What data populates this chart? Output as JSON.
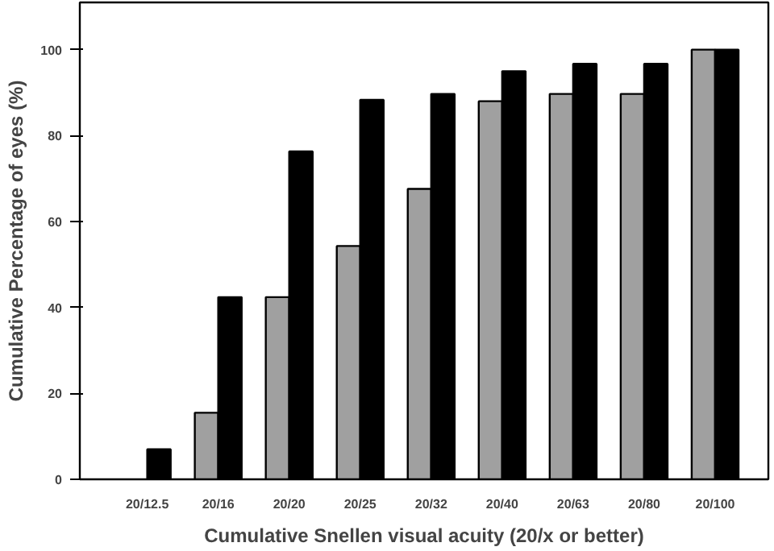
{
  "chart_data": {
    "type": "bar",
    "xlabel": "Cumulative Snellen visual acuity (20/x or better)",
    "ylabel": "Cumulative Percentage of eyes (%)",
    "categories": [
      "20/12.5",
      "20/16",
      "20/20",
      "20/25",
      "20/32",
      "20/40",
      "20/63",
      "20/80",
      "20/100"
    ],
    "series": [
      {
        "color": "#a0a0a0",
        "values": [
          null,
          15.5,
          42.4,
          54.3,
          67.6,
          88.0,
          89.7,
          89.7,
          100
        ]
      },
      {
        "color": "#000000",
        "values": [
          7.0,
          42.4,
          76.3,
          88.3,
          89.7,
          95.0,
          96.7,
          96.7,
          100
        ]
      }
    ],
    "ylim": [
      0,
      111
    ],
    "yticks": [
      0,
      20,
      40,
      60,
      80,
      100
    ],
    "grid": false
  }
}
